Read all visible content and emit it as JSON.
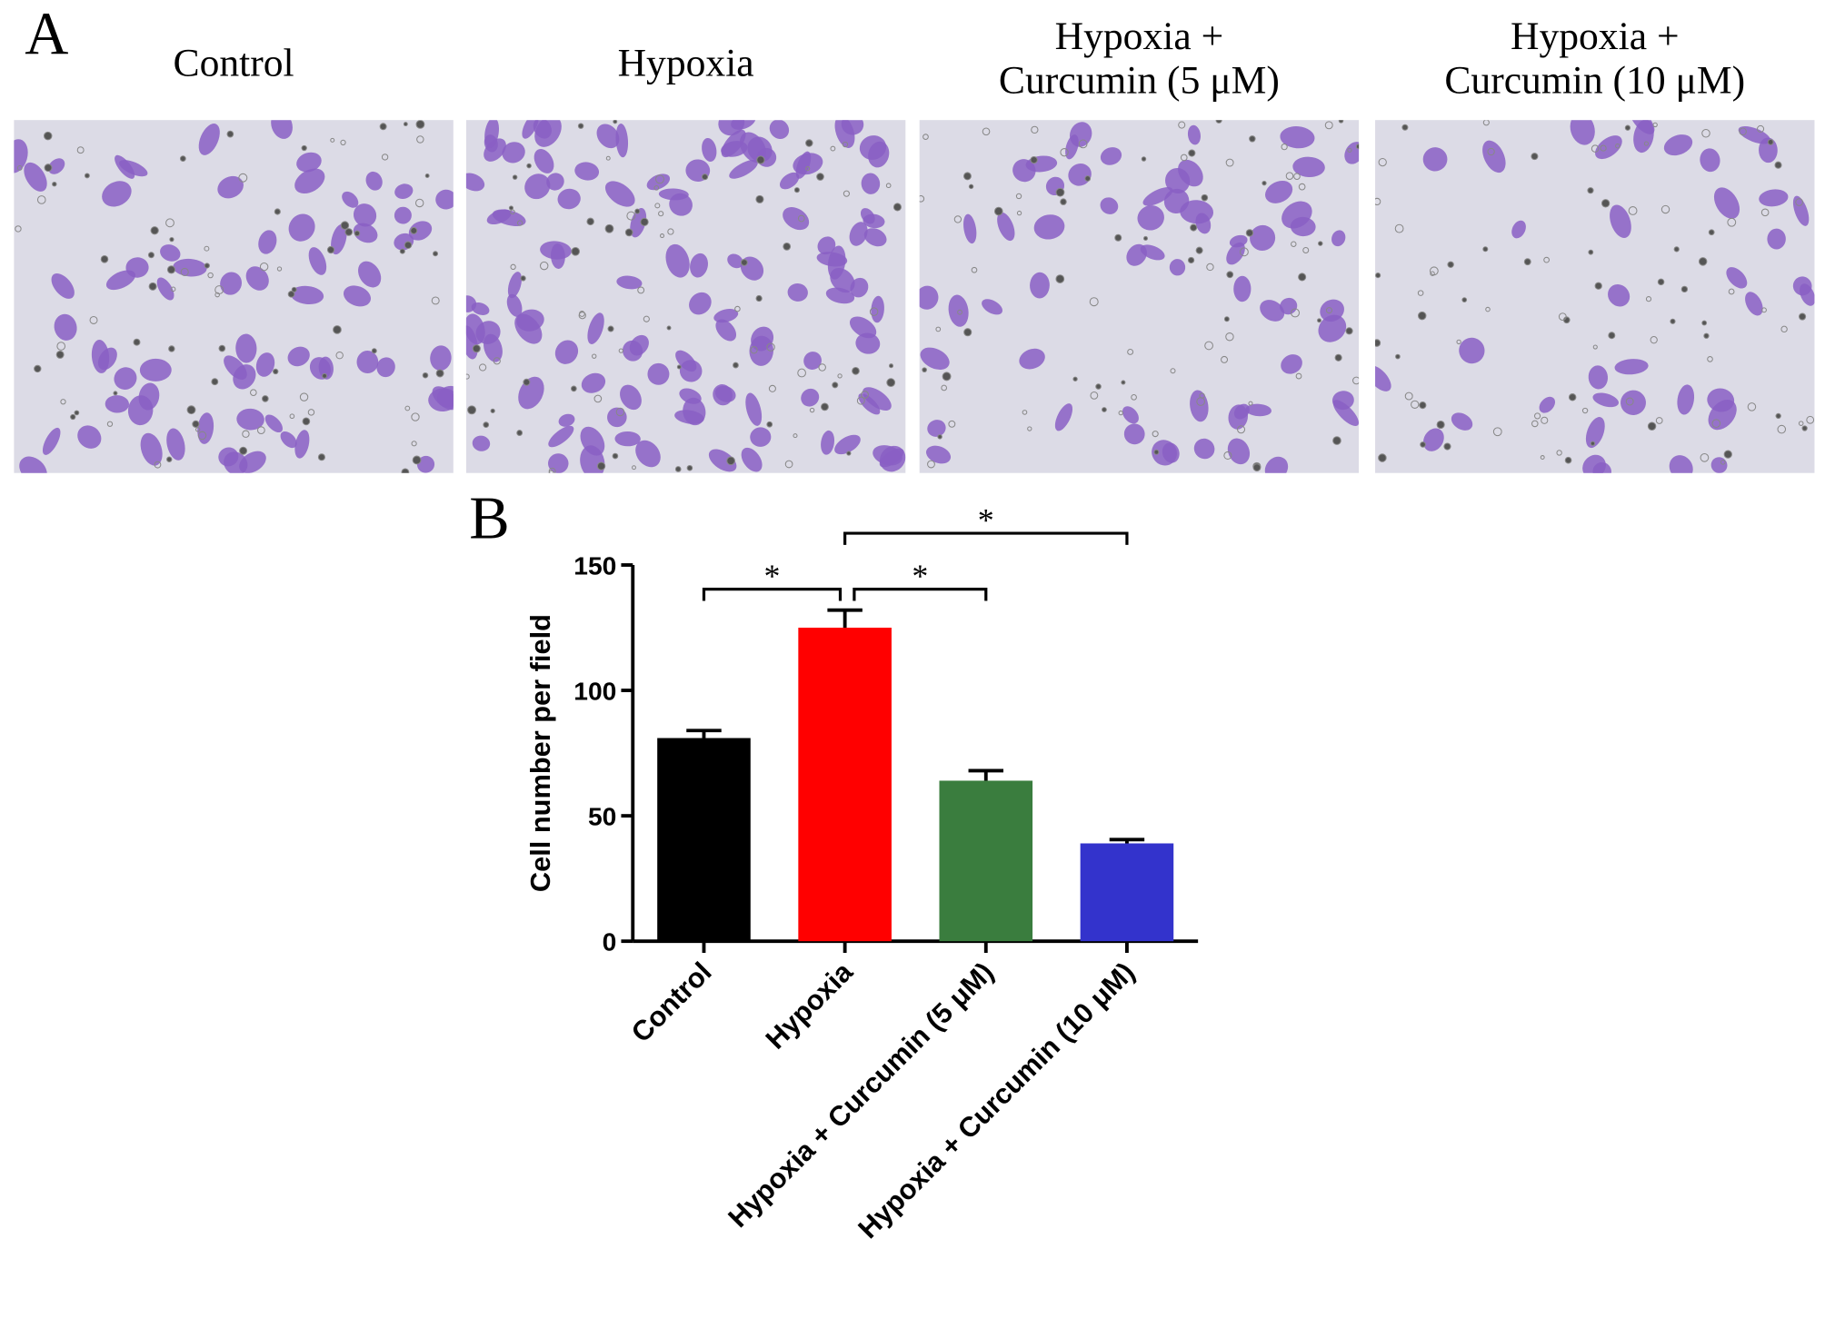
{
  "panel_a": {
    "label": "A",
    "images": [
      {
        "title": [
          "Control"
        ],
        "density": 70
      },
      {
        "title": [
          "Hypoxia"
        ],
        "density": 115
      },
      {
        "title": [
          "Hypoxia +",
          "Curcumin (5 μM)"
        ],
        "density": 60
      },
      {
        "title": [
          "Hypoxia +",
          "Curcumin (10 μM)"
        ],
        "density": 38
      }
    ]
  },
  "chart_data": {
    "type": "bar",
    "panel_label": "B",
    "y_label": "Cell number per field",
    "categories": [
      "Control",
      "Hypoxia",
      "Hypoxia + Curcumin  (5 μM)",
      "Hypoxia + Curcumin  (10 μM)"
    ],
    "values": [
      81,
      125,
      64,
      39
    ],
    "errors": [
      3,
      7,
      4,
      1.5
    ],
    "colors": [
      "#000000",
      "#ff0000",
      "#3a7d3e",
      "#3333cc"
    ],
    "ylim": [
      0,
      150
    ],
    "yticks": [
      0,
      50,
      100,
      150
    ],
    "significance": [
      {
        "from": "Control",
        "to": "Hypoxia",
        "label": "*"
      },
      {
        "from": "Hypoxia",
        "to": "Hypoxia + Curcumin  (5 μM)",
        "label": "*"
      },
      {
        "from": "Hypoxia",
        "to": "Hypoxia + Curcumin  (10 μM)",
        "label": "*"
      }
    ]
  }
}
